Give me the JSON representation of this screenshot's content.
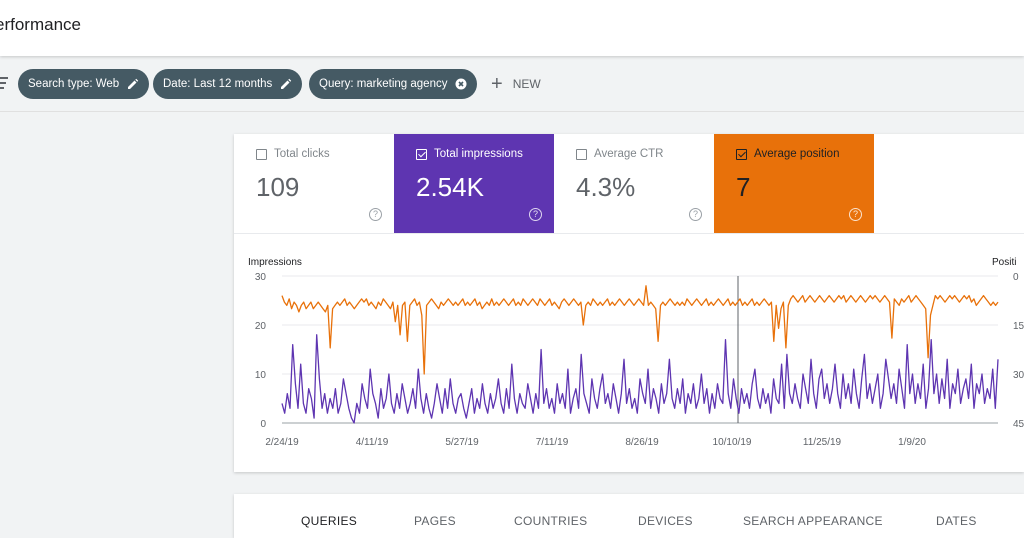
{
  "header": {
    "title": "erformance"
  },
  "filters": {
    "chips": [
      {
        "label": "Search type: Web",
        "icon": "pencil-icon"
      },
      {
        "label": "Date: Last 12 months",
        "icon": "pencil-icon"
      },
      {
        "label": "Query: marketing agency",
        "icon": "close-circle-icon"
      }
    ],
    "new_label": "NEW"
  },
  "metrics": [
    {
      "label": "Total clicks",
      "value": "109",
      "checked": false
    },
    {
      "label": "Total impressions",
      "value": "2.54K",
      "checked": true,
      "color": "#5e35b1"
    },
    {
      "label": "Average CTR",
      "value": "4.3%",
      "checked": false
    },
    {
      "label": "Average position",
      "value": "7",
      "checked": true,
      "color": "#e8710a"
    }
  ],
  "chart_data": {
    "type": "line",
    "ylabel": "Impressions",
    "ylabel_right": "Positi",
    "y_ticks": [
      "30",
      "20",
      "10",
      "0"
    ],
    "ylim": [
      0,
      30
    ],
    "y2_ticks": [
      "0",
      "15",
      "30",
      "45"
    ],
    "y2lim": [
      0,
      45
    ],
    "y2_inverted": true,
    "x_ticks": [
      "2/24/19",
      "4/11/19",
      "5/27/19",
      "7/11/19",
      "8/26/19",
      "10/10/19",
      "11/25/19",
      "1/9/20"
    ],
    "series": [
      {
        "color": "#5e35b1",
        "axis": "left",
        "values": [
          4,
          2,
          6,
          3,
          16,
          8,
          3,
          12,
          4,
          2,
          7,
          5,
          1,
          18,
          9,
          3,
          6,
          2,
          5,
          3,
          7,
          2,
          4,
          9,
          6,
          3,
          1,
          0,
          4,
          2,
          8,
          5,
          3,
          11,
          6,
          4,
          1,
          7,
          3,
          5,
          10,
          4,
          2,
          6,
          3,
          8,
          5,
          2,
          4,
          7,
          3,
          11,
          5,
          2,
          6,
          3,
          1,
          4,
          8,
          5,
          2,
          7,
          3,
          9,
          4,
          2,
          5,
          6,
          3,
          1,
          4,
          7,
          2,
          5,
          3,
          8,
          4,
          2,
          6,
          3,
          5,
          9,
          4,
          2,
          7,
          3,
          12,
          5,
          2,
          6,
          4,
          3,
          8,
          5,
          2,
          6,
          3,
          15,
          4,
          7,
          3,
          5,
          2,
          8,
          4,
          6,
          3,
          11,
          2,
          5,
          7,
          3,
          14,
          6,
          4,
          2,
          9,
          5,
          3,
          7,
          10,
          4,
          6,
          3,
          8,
          5,
          2,
          6,
          13,
          4,
          7,
          3,
          5,
          2,
          9,
          6,
          4,
          11,
          3,
          7,
          5,
          2,
          8,
          4,
          6,
          13,
          5,
          3,
          7,
          4,
          9,
          2,
          6,
          4,
          8,
          3,
          5,
          10,
          4,
          7,
          2,
          6,
          3,
          8,
          5,
          4,
          17,
          6,
          3,
          9,
          5,
          2,
          7,
          4,
          6,
          3,
          8,
          11,
          5,
          3,
          7,
          4,
          6,
          2,
          9,
          5,
          4,
          12,
          3,
          14,
          6,
          4,
          8,
          5,
          3,
          10,
          7,
          4,
          13,
          6,
          3,
          9,
          11,
          5,
          8,
          4,
          7,
          12,
          6,
          3,
          10,
          5,
          8,
          4,
          11,
          6,
          3,
          9,
          14,
          5,
          8,
          4,
          7,
          10,
          3,
          6,
          13,
          9,
          5,
          8,
          4,
          11,
          7,
          3,
          16,
          6,
          10,
          4,
          8,
          5,
          12,
          3,
          7,
          17,
          6,
          10,
          4,
          9,
          5,
          13,
          3,
          8,
          6,
          11,
          4,
          7,
          9,
          5,
          12,
          3,
          8,
          6,
          10,
          4,
          7,
          5,
          11,
          3,
          13
        ]
      },
      {
        "color": "#e8710a",
        "axis": "right",
        "values": [
          6,
          8,
          9,
          7,
          10,
          8,
          9,
          11,
          9,
          8,
          10,
          9,
          8,
          10,
          9,
          8,
          9,
          10,
          11,
          9,
          22,
          10,
          9,
          8,
          9,
          8,
          7,
          9,
          8,
          9,
          10,
          9,
          8,
          7,
          8,
          7,
          9,
          8,
          9,
          10,
          8,
          9,
          7,
          8,
          9,
          10,
          8,
          14,
          9,
          18,
          9,
          8,
          20,
          9,
          8,
          7,
          9,
          8,
          12,
          30,
          9,
          8,
          7,
          8,
          9,
          10,
          8,
          9,
          8,
          7,
          8,
          9,
          8,
          9,
          8,
          7,
          9,
          8,
          9,
          8,
          7,
          9,
          8,
          10,
          9,
          8,
          9,
          7,
          9,
          8,
          9,
          8,
          7,
          8,
          9,
          8,
          7,
          9,
          8,
          9,
          7,
          8,
          9,
          8,
          7,
          8,
          9,
          7,
          8,
          9,
          8,
          7,
          9,
          8,
          9,
          10,
          8,
          7,
          8,
          9,
          8,
          7,
          8,
          9,
          8,
          15,
          9,
          8,
          9,
          7,
          8,
          9,
          8,
          9,
          8,
          7,
          9,
          8,
          9,
          8,
          7,
          8,
          9,
          8,
          7,
          8,
          9,
          8,
          7,
          8,
          9,
          3,
          9,
          8,
          9,
          10,
          20,
          9,
          8,
          9,
          8,
          7,
          8,
          9,
          8,
          9,
          8,
          9,
          7,
          8,
          9,
          8,
          7,
          8,
          9,
          8,
          7,
          9,
          8,
          9,
          8,
          7,
          8,
          9,
          8,
          7,
          9,
          8,
          9,
          8,
          7,
          9,
          8,
          9,
          8,
          7,
          9,
          8,
          9,
          8,
          7,
          8,
          9,
          8,
          20,
          9,
          16,
          10,
          8,
          22,
          9,
          7,
          6,
          7,
          8,
          7,
          6,
          8,
          7,
          6,
          7,
          8,
          7,
          6,
          7,
          8,
          7,
          6,
          7,
          8,
          7,
          6,
          7,
          6,
          8,
          7,
          6,
          7,
          8,
          7,
          6,
          7,
          8,
          7,
          6,
          7,
          6,
          7,
          8,
          7,
          6,
          7,
          8,
          19,
          7,
          8,
          9,
          7,
          8,
          7,
          6,
          8,
          7,
          6,
          7,
          8,
          9,
          10,
          25,
          12,
          9,
          6,
          7,
          6,
          7,
          8,
          7,
          6,
          7,
          6,
          7,
          8,
          7,
          6,
          7,
          6,
          8,
          7,
          9,
          8,
          7,
          6,
          7,
          8,
          9,
          8,
          9,
          8
        ]
      }
    ]
  },
  "tabs": [
    {
      "label": "QUERIES",
      "active": true
    },
    {
      "label": "PAGES"
    },
    {
      "label": "COUNTRIES"
    },
    {
      "label": "DEVICES"
    },
    {
      "label": "SEARCH APPEARANCE"
    },
    {
      "label": "DATES"
    }
  ]
}
